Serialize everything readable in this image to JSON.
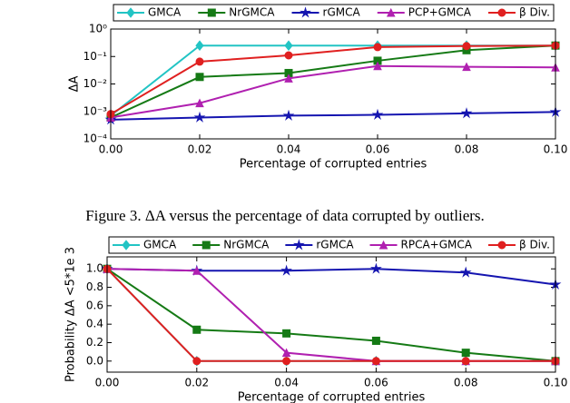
{
  "chart_data": [
    {
      "type": "line",
      "log_y": true,
      "x_label": "Percentage of corrupted entries",
      "y_label": "ΔA",
      "x": [
        0,
        0.02,
        0.04,
        0.06,
        0.08,
        0.1
      ],
      "xlim": [
        0,
        0.1
      ],
      "xticks": [
        {
          "value": 0,
          "label": "0.00"
        },
        {
          "value": 0.02,
          "label": "0.02"
        },
        {
          "value": 0.04,
          "label": "0.04"
        },
        {
          "value": 0.06,
          "label": "0.06"
        },
        {
          "value": 0.08,
          "label": "0.08"
        },
        {
          "value": 0.1,
          "label": "0.10"
        }
      ],
      "ylim": [
        0.0001,
        1
      ],
      "yticks": [
        {
          "value": 0.0001,
          "label": "10⁻⁴"
        },
        {
          "value": 0.001,
          "label": "10⁻³"
        },
        {
          "value": 0.01,
          "label": "10⁻²"
        },
        {
          "value": 0.1,
          "label": "10⁻¹"
        },
        {
          "value": 1,
          "label": "10⁰"
        }
      ],
      "series": [
        {
          "name": "GMCA",
          "color": "#22c4c4",
          "marker": "diamond",
          "values": [
            0.0007,
            0.25,
            0.25,
            0.25,
            0.25,
            0.25
          ]
        },
        {
          "name": "NrGMCA",
          "color": "#157a15",
          "marker": "square",
          "values": [
            0.0006,
            0.018,
            0.025,
            0.07,
            0.17,
            0.25
          ]
        },
        {
          "name": "rGMCA",
          "color": "#1515b0",
          "marker": "star",
          "values": [
            0.0005,
            0.0006,
            0.0007,
            0.00075,
            0.00085,
            0.00095
          ]
        },
        {
          "name": "PCP+GMCA",
          "color": "#b020b0",
          "marker": "triangle",
          "values": [
            0.0006,
            0.002,
            0.016,
            0.045,
            0.042,
            0.04
          ]
        },
        {
          "name": "β Div.",
          "color": "#e02020",
          "marker": "circle",
          "values": [
            0.0008,
            0.065,
            0.11,
            0.22,
            0.24,
            0.25
          ]
        }
      ]
    },
    {
      "type": "line",
      "log_y": false,
      "x_label": "Percentage of corrupted entries",
      "y_label": "Probability ΔA <5*1e 3",
      "x": [
        0,
        0.02,
        0.04,
        0.06,
        0.08,
        0.1
      ],
      "xlim": [
        0,
        0.1
      ],
      "xticks": [
        {
          "value": 0,
          "label": "0.00"
        },
        {
          "value": 0.02,
          "label": "0.02"
        },
        {
          "value": 0.04,
          "label": "0.04"
        },
        {
          "value": 0.06,
          "label": "0.06"
        },
        {
          "value": 0.08,
          "label": "0.08"
        },
        {
          "value": 0.1,
          "label": "0.10"
        }
      ],
      "ylim": [
        -0.12,
        1.13
      ],
      "yticks": [
        {
          "value": 0,
          "label": "0.0"
        },
        {
          "value": 0.2,
          "label": "0.2"
        },
        {
          "value": 0.4,
          "label": "0.4"
        },
        {
          "value": 0.6,
          "label": "0.6"
        },
        {
          "value": 0.8,
          "label": "0.8"
        },
        {
          "value": 1,
          "label": "1.0"
        }
      ],
      "series": [
        {
          "name": "GMCA",
          "color": "#22c4c4",
          "marker": "diamond",
          "values": [
            1,
            0,
            0,
            0,
            0,
            0
          ]
        },
        {
          "name": "NrGMCA",
          "color": "#157a15",
          "marker": "square",
          "values": [
            1,
            0.34,
            0.3,
            0.22,
            0.09,
            0
          ]
        },
        {
          "name": "rGMCA",
          "color": "#1515b0",
          "marker": "star",
          "values": [
            1,
            0.98,
            0.98,
            1,
            0.96,
            0.83
          ]
        },
        {
          "name": "RPCA+GMCA",
          "color": "#b020b0",
          "marker": "triangle",
          "values": [
            1,
            0.98,
            0.09,
            0,
            0,
            0
          ]
        },
        {
          "name": "β Div.",
          "color": "#e02020",
          "marker": "circle",
          "values": [
            1,
            0,
            0,
            0,
            0,
            0
          ]
        }
      ]
    }
  ],
  "caption": "Figure 3.  ΔA versus the percentage of data corrupted by outliers."
}
